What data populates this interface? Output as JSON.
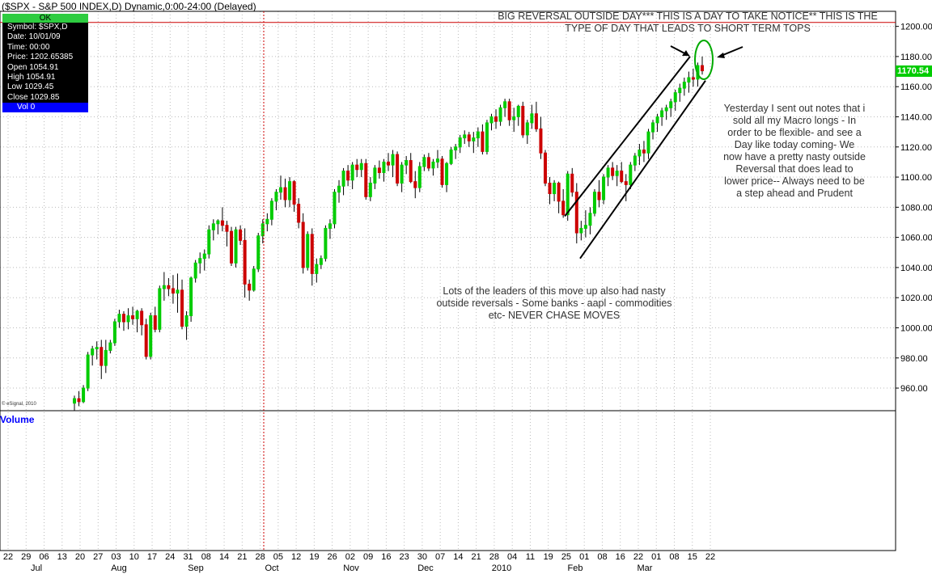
{
  "header": {
    "title": "($SPX - S&P 500 INDEX,D) Dynamic,0:00-24:00 (Delayed)"
  },
  "info_box": {
    "status": "OK",
    "rows": [
      "Symbol: $SPX,D",
      "Date: 10/01/09",
      "Time: 00:00",
      "Price: 1202.65385",
      "Open 1054.91",
      "High 1054.91",
      "Low 1029.45",
      "Close 1029.85"
    ],
    "volume": "Vol 0"
  },
  "last_price": "1170.54",
  "volume_label": "Volume",
  "copyright": "© eSignal, 2010",
  "annotations": {
    "top_note": [
      "BIG REVERSAL OUTSIDE DAY*** THIS IS A DAY TO TAKE NOTICE** THIS IS THE",
      "TYPE OF DAY THAT LEADS TO SHORT TERM TOPS"
    ],
    "right_note": [
      "Yesterday I sent out notes that i",
      "sold all my Macro longs - In",
      "order to be flexible- and see a",
      "Day like today coming-  We",
      "now have a pretty nasty outside",
      "Reversal that does lead to",
      "lower price-- Always need to be",
      "a step ahead and Prudent"
    ],
    "middle_note": [
      "Lots of the leaders of this move up also had nasty",
      "outside reversals - Some banks - aapl - commodities",
      "etc-  NEVER CHASE MOVES"
    ]
  },
  "colors": {
    "up": "#00cc00",
    "down": "#cc0000",
    "grid": "#bbbbbb",
    "crosshair": "#cc0000",
    "annotation": "#000000",
    "circle": "#00aa00"
  },
  "chart_data": {
    "type": "candlestick",
    "symbol": "$SPX",
    "interval": "daily",
    "ylim": [
      945,
      1210
    ],
    "y_ticks": [
      960,
      980,
      1000,
      1020,
      1040,
      1060,
      1080,
      1100,
      1120,
      1140,
      1160,
      1180,
      1200
    ],
    "y_tick_labels": [
      "960.00",
      "980.00",
      "1000.00",
      "1020.00",
      "1040.00",
      "1060.00",
      "1080.00",
      "1100.00",
      "1120.00",
      "1140.00",
      "1160.00",
      "1180.00",
      "1200.00"
    ],
    "x_tick_labels": [
      "22",
      "29",
      "06",
      "13",
      "20",
      "27",
      "03",
      "10",
      "17",
      "24",
      "31",
      "08",
      "14",
      "21",
      "28",
      "05",
      "12",
      "19",
      "26",
      "02",
      "09",
      "16",
      "23",
      "30",
      "07",
      "14",
      "21",
      "28",
      "04",
      "11",
      "19",
      "25",
      "01",
      "08",
      "16",
      "22",
      "01",
      "08",
      "15",
      "22"
    ],
    "month_labels": [
      "Jul",
      "Aug",
      "Sep",
      "Oct",
      "Nov",
      "Dec",
      "2010",
      "Feb",
      "Mar"
    ],
    "crosshair_price": 1202.65,
    "crosshair_date": "10/01/09",
    "last_price": 1170.54,
    "ohlc": [
      [
        950,
        955,
        945,
        953
      ],
      [
        953,
        958,
        948,
        951
      ],
      [
        951,
        962,
        950,
        960
      ],
      [
        960,
        984,
        958,
        982
      ],
      [
        982,
        988,
        975,
        986
      ],
      [
        986,
        991,
        979,
        987
      ],
      [
        987,
        992,
        966,
        975
      ],
      [
        975,
        992,
        970,
        985
      ],
      [
        985,
        992,
        983,
        990
      ],
      [
        990,
        1006,
        988,
        1004
      ],
      [
        1004,
        1012,
        1000,
        1009
      ],
      [
        1009,
        1011,
        998,
        1004
      ],
      [
        1004,
        1013,
        999,
        1008
      ],
      [
        1008,
        1014,
        1002,
        1006
      ],
      [
        1006,
        1012,
        997,
        1011
      ],
      [
        1011,
        1013,
        995,
        1002
      ],
      [
        1002,
        1006,
        979,
        981
      ],
      [
        981,
        1010,
        979,
        1008
      ],
      [
        1008,
        1014,
        997,
        999
      ],
      [
        999,
        1028,
        997,
        1026
      ],
      [
        1026,
        1037,
        1018,
        1028
      ],
      [
        1028,
        1033,
        1021,
        1026
      ],
      [
        1026,
        1035,
        1016,
        1023
      ],
      [
        1023,
        1036,
        1010,
        1025
      ],
      [
        1025,
        1032,
        999,
        1001
      ],
      [
        1001,
        1011,
        992,
        1008
      ],
      [
        1008,
        1034,
        1004,
        1033
      ],
      [
        1033,
        1045,
        1030,
        1043
      ],
      [
        1043,
        1050,
        1036,
        1046
      ],
      [
        1046,
        1052,
        1038,
        1049
      ],
      [
        1049,
        1068,
        1046,
        1065
      ],
      [
        1065,
        1072,
        1058,
        1069
      ],
      [
        1069,
        1072,
        1062,
        1071
      ],
      [
        1071,
        1080,
        1064,
        1068
      ],
      [
        1068,
        1071,
        1054,
        1064
      ],
      [
        1064,
        1067,
        1041,
        1043
      ],
      [
        1043,
        1067,
        1040,
        1065
      ],
      [
        1065,
        1068,
        1055,
        1058
      ],
      [
        1058,
        1066,
        1020,
        1029
      ],
      [
        1029,
        1032,
        1018,
        1025
      ],
      [
        1025,
        1041,
        1024,
        1039
      ],
      [
        1039,
        1063,
        1037,
        1061
      ],
      [
        1061,
        1072,
        1056,
        1069
      ],
      [
        1069,
        1076,
        1064,
        1072
      ],
      [
        1072,
        1086,
        1068,
        1084
      ],
      [
        1084,
        1092,
        1078,
        1090
      ],
      [
        1090,
        1101,
        1085,
        1093
      ],
      [
        1093,
        1099,
        1080,
        1085
      ],
      [
        1085,
        1100,
        1080,
        1097
      ],
      [
        1097,
        1098,
        1077,
        1082
      ],
      [
        1082,
        1086,
        1066,
        1070
      ],
      [
        1070,
        1076,
        1036,
        1040
      ],
      [
        1040,
        1064,
        1038,
        1062
      ],
      [
        1062,
        1066,
        1028,
        1036
      ],
      [
        1036,
        1046,
        1030,
        1042
      ],
      [
        1042,
        1048,
        1039,
        1046
      ],
      [
        1046,
        1068,
        1044,
        1066
      ],
      [
        1066,
        1072,
        1059,
        1069
      ],
      [
        1069,
        1092,
        1066,
        1090
      ],
      [
        1090,
        1098,
        1083,
        1094
      ],
      [
        1094,
        1106,
        1088,
        1104
      ],
      [
        1104,
        1108,
        1094,
        1098
      ],
      [
        1098,
        1110,
        1092,
        1108
      ],
      [
        1108,
        1112,
        1100,
        1105
      ],
      [
        1105,
        1112,
        1100,
        1109
      ],
      [
        1109,
        1112,
        1085,
        1087
      ],
      [
        1087,
        1100,
        1084,
        1096
      ],
      [
        1096,
        1108,
        1092,
        1106
      ],
      [
        1106,
        1111,
        1099,
        1103
      ],
      [
        1103,
        1112,
        1097,
        1110
      ],
      [
        1110,
        1116,
        1104,
        1108
      ],
      [
        1108,
        1118,
        1100,
        1115
      ],
      [
        1115,
        1117,
        1094,
        1096
      ],
      [
        1096,
        1110,
        1090,
        1108
      ],
      [
        1108,
        1114,
        1102,
        1111
      ],
      [
        1111,
        1116,
        1096,
        1097
      ],
      [
        1097,
        1104,
        1086,
        1093
      ],
      [
        1093,
        1110,
        1090,
        1107
      ],
      [
        1107,
        1115,
        1104,
        1113
      ],
      [
        1113,
        1116,
        1104,
        1106
      ],
      [
        1106,
        1112,
        1101,
        1110
      ],
      [
        1110,
        1118,
        1106,
        1112
      ],
      [
        1112,
        1114,
        1093,
        1095
      ],
      [
        1095,
        1110,
        1090,
        1109
      ],
      [
        1109,
        1120,
        1108,
        1118
      ],
      [
        1118,
        1122,
        1112,
        1120
      ],
      [
        1120,
        1128,
        1116,
        1126
      ],
      [
        1126,
        1131,
        1122,
        1128
      ],
      [
        1128,
        1130,
        1120,
        1124
      ],
      [
        1124,
        1130,
        1116,
        1126
      ],
      [
        1126,
        1133,
        1120,
        1130
      ],
      [
        1130,
        1135,
        1115,
        1117
      ],
      [
        1117,
        1138,
        1115,
        1136
      ],
      [
        1136,
        1142,
        1131,
        1140
      ],
      [
        1140,
        1145,
        1132,
        1137
      ],
      [
        1137,
        1148,
        1134,
        1146
      ],
      [
        1146,
        1152,
        1140,
        1150
      ],
      [
        1150,
        1152,
        1134,
        1138
      ],
      [
        1138,
        1146,
        1130,
        1140
      ],
      [
        1140,
        1148,
        1134,
        1147
      ],
      [
        1147,
        1150,
        1126,
        1128
      ],
      [
        1128,
        1138,
        1122,
        1136
      ],
      [
        1136,
        1148,
        1132,
        1142
      ],
      [
        1142,
        1150,
        1130,
        1132
      ],
      [
        1132,
        1140,
        1112,
        1116
      ],
      [
        1116,
        1118,
        1094,
        1096
      ],
      [
        1096,
        1100,
        1082,
        1089
      ],
      [
        1089,
        1098,
        1084,
        1096
      ],
      [
        1096,
        1097,
        1076,
        1084
      ],
      [
        1084,
        1092,
        1073,
        1075
      ],
      [
        1075,
        1104,
        1071,
        1102
      ],
      [
        1102,
        1106,
        1087,
        1090
      ],
      [
        1090,
        1096,
        1056,
        1063
      ],
      [
        1063,
        1071,
        1058,
        1066
      ],
      [
        1066,
        1078,
        1060,
        1068
      ],
      [
        1068,
        1080,
        1062,
        1076
      ],
      [
        1076,
        1092,
        1074,
        1090
      ],
      [
        1090,
        1098,
        1080,
        1085
      ],
      [
        1085,
        1102,
        1082,
        1100
      ],
      [
        1100,
        1108,
        1094,
        1106
      ],
      [
        1106,
        1110,
        1098,
        1101
      ],
      [
        1101,
        1108,
        1094,
        1104
      ],
      [
        1104,
        1110,
        1096,
        1097
      ],
      [
        1097,
        1102,
        1084,
        1095
      ],
      [
        1095,
        1110,
        1092,
        1108
      ],
      [
        1108,
        1116,
        1104,
        1114
      ],
      [
        1114,
        1122,
        1108,
        1118
      ],
      [
        1118,
        1124,
        1110,
        1116
      ],
      [
        1116,
        1132,
        1112,
        1130
      ],
      [
        1130,
        1138,
        1125,
        1136
      ],
      [
        1136,
        1142,
        1130,
        1140
      ],
      [
        1140,
        1146,
        1134,
        1144
      ],
      [
        1144,
        1148,
        1138,
        1146
      ],
      [
        1146,
        1152,
        1140,
        1150
      ],
      [
        1150,
        1158,
        1144,
        1156
      ],
      [
        1156,
        1162,
        1150,
        1159
      ],
      [
        1159,
        1166,
        1154,
        1163
      ],
      [
        1163,
        1170,
        1156,
        1166
      ],
      [
        1166,
        1172,
        1160,
        1165
      ],
      [
        1165,
        1176,
        1160,
        1174
      ],
      [
        1174,
        1180,
        1168,
        1170.54
      ]
    ]
  }
}
